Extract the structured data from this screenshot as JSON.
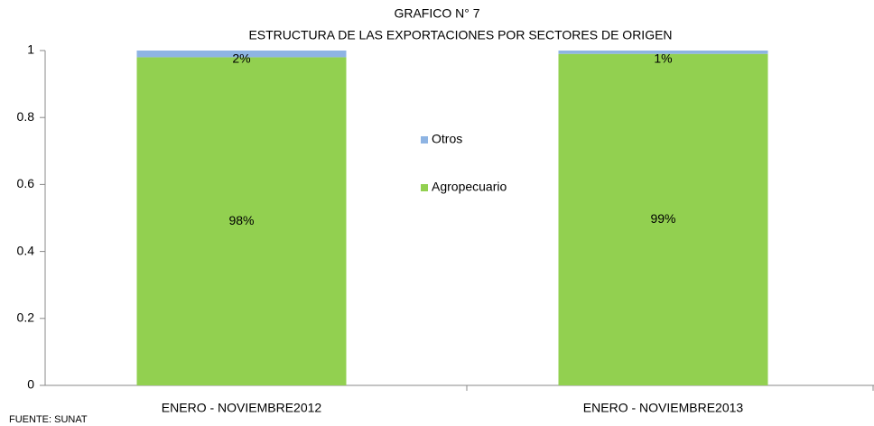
{
  "chart_data": {
    "type": "stacked_bar",
    "title": "GRAFICO N° 7",
    "subtitle": "ESTRUCTURA DE LAS EXPORTACIONES POR SECTORES DE ORIGEN",
    "source": "FUENTE: SUNAT",
    "categories": [
      "ENERO - NOVIEMBRE2012",
      "ENERO - NOVIEMBRE2013"
    ],
    "series": [
      {
        "name": "Agropecuario",
        "color": "#92d050",
        "values": [
          0.98,
          0.99
        ],
        "value_labels": [
          "98%",
          "99%"
        ]
      },
      {
        "name": "Otros",
        "color": "#8eb4e3",
        "values": [
          0.02,
          0.01
        ],
        "value_labels": [
          "2%",
          "1%"
        ]
      }
    ],
    "ylim": [
      0,
      1
    ],
    "yticks": [
      0,
      0.2,
      0.4,
      0.6,
      0.8,
      1
    ],
    "grid": false,
    "legend": "center"
  }
}
